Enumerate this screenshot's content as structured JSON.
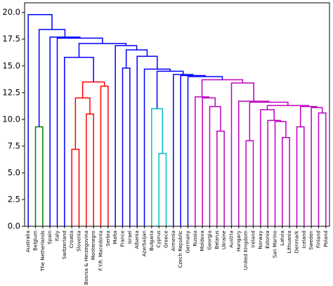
{
  "chart_data": {
    "type": "dendrogram",
    "leaves": [
      "Australia",
      "Belgium",
      "The Netherlands",
      "Spain",
      "Italy",
      "Switzerland",
      "Croatia",
      "Slovenia",
      "Bosnia & Herzegovina",
      "Montenegro",
      "F.Y.R. Macedonia",
      "Serbia",
      "Malta",
      "France",
      "Israel",
      "Albania",
      "Azerbaijan",
      "Bulgaria",
      "Cyprus",
      "Greece",
      "Armenia",
      "Czech Republic",
      "Germany",
      "Russia",
      "Moldova",
      "Georgia",
      "Belarus",
      "Ukraine",
      "Austria",
      "Hungary",
      "United Kingdom",
      "Ireland",
      "Norway",
      "Estonia",
      "San Marino",
      "Latvia",
      "Lithuania",
      "Denmark",
      "Iceland",
      "Sweden",
      "Finland",
      "Poland"
    ],
    "links": [
      {
        "left": 18,
        "right": 19,
        "height": 6.8,
        "color": "#00bfbf"
      },
      {
        "left": 6,
        "right": 7,
        "height": 7.2,
        "color": "#ff0000"
      },
      {
        "left": 30,
        "right": 31,
        "height": 8.0,
        "color": "#bf00bf"
      },
      {
        "left": 35,
        "right": 36,
        "height": 8.3,
        "color": "#bf00bf"
      },
      {
        "left": 26,
        "right": 27,
        "height": 8.9,
        "color": "#bf00bf"
      },
      {
        "left": 1,
        "right": 2,
        "height": 9.3,
        "color": "#008000"
      },
      {
        "left": 37,
        "right": 38,
        "height": 9.3,
        "color": "#bf00bf"
      },
      {
        "left": 34,
        "right": 45,
        "height": 9.8,
        "color": "#bf00bf"
      },
      {
        "left": 33,
        "right": 49,
        "height": 9.9,
        "color": "#bf00bf"
      },
      {
        "left": 8,
        "right": 9,
        "height": 10.5,
        "color": "#ff0000"
      },
      {
        "left": 40,
        "right": 41,
        "height": 10.6,
        "color": "#bf00bf"
      },
      {
        "left": 32,
        "right": 50,
        "height": 10.9,
        "color": "#bf00bf"
      },
      {
        "left": 17,
        "right": 42,
        "height": 11.0,
        "color": "#00bfbf"
      },
      {
        "left": 39,
        "right": 52,
        "height": 11.1,
        "color": "#bf00bf"
      },
      {
        "left": 48,
        "right": 55,
        "height": 11.2,
        "color": "#bf00bf"
      },
      {
        "left": 25,
        "right": 46,
        "height": 11.2,
        "color": "#bf00bf"
      },
      {
        "left": 53,
        "right": 56,
        "height": 11.3,
        "color": "#bf00bf"
      },
      {
        "left": 44,
        "right": 58,
        "height": 11.6,
        "color": "#bf00bf"
      },
      {
        "left": 29,
        "right": 59,
        "height": 11.7,
        "color": "#bf00bf"
      },
      {
        "left": 24,
        "right": 57,
        "height": 12.0,
        "color": "#bf00bf"
      },
      {
        "left": 43,
        "right": 51,
        "height": 12.0,
        "color": "#ff0000"
      },
      {
        "left": 23,
        "right": 61,
        "height": 12.1,
        "color": "#bf00bf"
      },
      {
        "left": 10,
        "right": 11,
        "height": 13.1,
        "color": "#ff0000"
      },
      {
        "left": 28,
        "right": 60,
        "height": 13.4,
        "color": "#bf00bf"
      },
      {
        "left": 62,
        "right": 64,
        "height": 13.5,
        "color": "#ff0000"
      },
      {
        "left": 63,
        "right": 65,
        "height": 13.7,
        "color": "#bf00bf"
      },
      {
        "left": 22,
        "right": 67,
        "height": 14.0,
        "color": "#0000ff"
      },
      {
        "left": 21,
        "right": 68,
        "height": 14.1,
        "color": "#0000ff"
      },
      {
        "left": 20,
        "right": 69,
        "height": 14.2,
        "color": "#0000ff"
      },
      {
        "left": 54,
        "right": 70,
        "height": 14.5,
        "color": "#0000ff"
      },
      {
        "left": 16,
        "right": 71,
        "height": 14.7,
        "color": "#0000ff"
      },
      {
        "left": 13,
        "right": 14,
        "height": 14.8,
        "color": "#0000ff"
      },
      {
        "left": 5,
        "right": 66,
        "height": 15.8,
        "color": "#0000ff"
      },
      {
        "left": 15,
        "right": 72,
        "height": 15.9,
        "color": "#0000ff"
      },
      {
        "left": 73,
        "right": 75,
        "height": 16.5,
        "color": "#0000ff"
      },
      {
        "left": 12,
        "right": 76,
        "height": 16.9,
        "color": "#0000ff"
      },
      {
        "left": 74,
        "right": 77,
        "height": 17.1,
        "color": "#0000ff"
      },
      {
        "left": 4,
        "right": 78,
        "height": 17.6,
        "color": "#0000ff"
      },
      {
        "left": 3,
        "right": 79,
        "height": 17.7,
        "color": "#0000ff"
      },
      {
        "left": 47,
        "right": 80,
        "height": 18.4,
        "color": "#0000ff"
      },
      {
        "left": 0,
        "right": 81,
        "height": 19.8,
        "color": "#0000ff"
      }
    ],
    "ylim": [
      0,
      20.9
    ],
    "yticks": [
      {
        "value": 0,
        "label": "0.0"
      },
      {
        "value": 2.5,
        "label": "2.5"
      },
      {
        "value": 5,
        "label": "5.0"
      },
      {
        "value": 7.5,
        "label": "7.5"
      },
      {
        "value": 10,
        "label": "10.0"
      },
      {
        "value": 12.5,
        "label": "12.5"
      },
      {
        "value": 15,
        "label": "15.0"
      },
      {
        "value": 17.5,
        "label": "17.5"
      },
      {
        "value": 20,
        "label": "20.0"
      }
    ]
  }
}
